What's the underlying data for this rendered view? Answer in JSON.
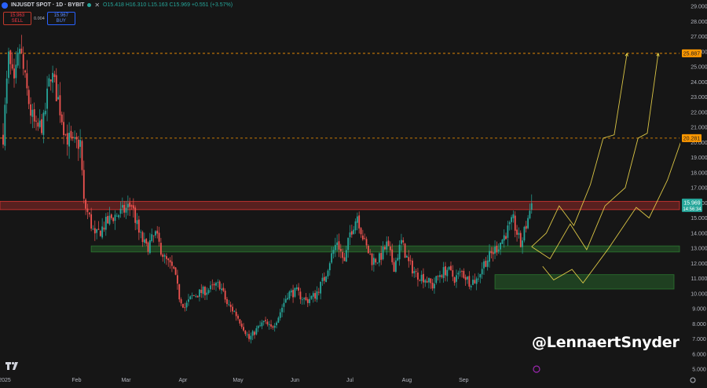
{
  "header": {
    "symbol_title": "INJUSDT SPOT · 1D · BYBIT",
    "close_label": "✕",
    "ohlc": "O15.418 H16.310 L15.163 C15.969 +0.551 (+3.57%)"
  },
  "trade": {
    "sell_price": "15.963",
    "sell_label": "SELL",
    "spread": "0.004",
    "buy_price": "15.967",
    "buy_label": "BUY"
  },
  "watermark": "@LennaertSnyder",
  "colors": {
    "background": "#161616",
    "up": "#26a69a",
    "down": "#ef5350",
    "resistance_zone": "#e53935",
    "support_zone": "#2e7d32",
    "target_line": "#ff9800",
    "projection": "#f0d84a",
    "price_tag": "#26a69a"
  },
  "chart_data": {
    "type": "candlestick",
    "symbol": "INJUSDT",
    "timeframe": "1D",
    "y_axis": {
      "ticks": [
        "29.000",
        "28.000",
        "27.000",
        "26.000",
        "25.000",
        "24.000",
        "23.000",
        "22.000",
        "21.000",
        "20.000",
        "19.000",
        "18.000",
        "17.000",
        "16.000",
        "15.000",
        "14.000",
        "13.000",
        "12.000",
        "11.000",
        "10.000",
        "9.000",
        "8.000",
        "7.000",
        "6.000",
        "5.000"
      ],
      "range": [
        4.6,
        29.3
      ],
      "position": "right"
    },
    "x_axis": {
      "ticks": [
        "2025",
        "Feb",
        "Mar",
        "Apr",
        "May",
        "Jun",
        "Jul",
        "Aug",
        "Sep"
      ]
    },
    "last_price": {
      "value": 15.969,
      "label": "15.969",
      "countdown": "14:56:34"
    },
    "target_levels": [
      {
        "value": 25.887,
        "label": "25.887"
      },
      {
        "value": 20.281,
        "label": "20.281"
      }
    ],
    "zones": [
      {
        "kind": "resistance",
        "from": 15.55,
        "to": 16.1
      },
      {
        "kind": "support",
        "from": 12.75,
        "to": 13.15
      },
      {
        "kind": "support",
        "from": 10.3,
        "to": 11.25
      }
    ],
    "price_path": [
      {
        "day": 0,
        "price": 20.5
      },
      {
        "day": 3,
        "price": 25.5
      },
      {
        "day": 6,
        "price": 23.6
      },
      {
        "day": 9,
        "price": 26.3
      },
      {
        "day": 12,
        "price": 24.0
      },
      {
        "day": 15,
        "price": 22.0
      },
      {
        "day": 18,
        "price": 20.8
      },
      {
        "day": 22,
        "price": 21.3
      },
      {
        "day": 26,
        "price": 24.7
      },
      {
        "day": 30,
        "price": 22.8
      },
      {
        "day": 34,
        "price": 20.5
      },
      {
        "day": 38,
        "price": 19.8
      },
      {
        "day": 42,
        "price": 20.0
      },
      {
        "day": 44,
        "price": 16.0
      },
      {
        "day": 47,
        "price": 15.0
      },
      {
        "day": 50,
        "price": 13.7
      },
      {
        "day": 55,
        "price": 14.5
      },
      {
        "day": 60,
        "price": 15.1
      },
      {
        "day": 65,
        "price": 15.4
      },
      {
        "day": 70,
        "price": 15.9
      },
      {
        "day": 74,
        "price": 14.0
      },
      {
        "day": 78,
        "price": 13.0
      },
      {
        "day": 83,
        "price": 13.9
      },
      {
        "day": 88,
        "price": 12.3
      },
      {
        "day": 93,
        "price": 11.5
      },
      {
        "day": 96,
        "price": 9.8
      },
      {
        "day": 99,
        "price": 9.1
      },
      {
        "day": 103,
        "price": 9.8
      },
      {
        "day": 108,
        "price": 10.1
      },
      {
        "day": 113,
        "price": 10.3
      },
      {
        "day": 118,
        "price": 10.6
      },
      {
        "day": 122,
        "price": 9.3
      },
      {
        "day": 126,
        "price": 8.8
      },
      {
        "day": 130,
        "price": 8.0
      },
      {
        "day": 134,
        "price": 7.0
      },
      {
        "day": 138,
        "price": 7.6
      },
      {
        "day": 142,
        "price": 8.1
      },
      {
        "day": 146,
        "price": 7.7
      },
      {
        "day": 150,
        "price": 8.5
      },
      {
        "day": 155,
        "price": 10.0
      },
      {
        "day": 160,
        "price": 10.1
      },
      {
        "day": 165,
        "price": 9.5
      },
      {
        "day": 170,
        "price": 9.9
      },
      {
        "day": 175,
        "price": 11.0
      },
      {
        "day": 178,
        "price": 12.2
      },
      {
        "day": 182,
        "price": 13.5
      },
      {
        "day": 186,
        "price": 12.0
      },
      {
        "day": 189,
        "price": 14.0
      },
      {
        "day": 193,
        "price": 15.2
      },
      {
        "day": 197,
        "price": 13.3
      },
      {
        "day": 201,
        "price": 12.2
      },
      {
        "day": 205,
        "price": 12.3
      },
      {
        "day": 209,
        "price": 13.2
      },
      {
        "day": 213,
        "price": 11.8
      },
      {
        "day": 217,
        "price": 13.4
      },
      {
        "day": 221,
        "price": 12.0
      },
      {
        "day": 225,
        "price": 11.3
      },
      {
        "day": 230,
        "price": 11.0
      },
      {
        "day": 234,
        "price": 10.5
      },
      {
        "day": 238,
        "price": 11.3
      },
      {
        "day": 242,
        "price": 11.6
      },
      {
        "day": 246,
        "price": 11.0
      },
      {
        "day": 250,
        "price": 11.4
      },
      {
        "day": 254,
        "price": 10.8
      },
      {
        "day": 258,
        "price": 10.9
      },
      {
        "day": 262,
        "price": 12.0
      },
      {
        "day": 266,
        "price": 12.6
      },
      {
        "day": 270,
        "price": 13.2
      },
      {
        "day": 274,
        "price": 14.0
      },
      {
        "day": 278,
        "price": 14.8
      },
      {
        "day": 282,
        "price": 13.2
      },
      {
        "day": 285,
        "price": 14.5
      },
      {
        "day": 288,
        "price": 15.969
      }
    ],
    "projections": [
      [
        {
          "day": 288,
          "price": 13.1
        },
        {
          "day": 296,
          "price": 14.0
        },
        {
          "day": 303,
          "price": 15.8
        },
        {
          "day": 311,
          "price": 14.5
        },
        {
          "day": 320,
          "price": 17.2
        },
        {
          "day": 327,
          "price": 20.281
        },
        {
          "day": 333,
          "price": 20.5
        },
        {
          "day": 340,
          "price": 25.887
        }
      ],
      [
        {
          "day": 288,
          "price": 13.1
        },
        {
          "day": 298,
          "price": 12.3
        },
        {
          "day": 309,
          "price": 14.6
        },
        {
          "day": 318,
          "price": 12.9
        },
        {
          "day": 328,
          "price": 15.8
        },
        {
          "day": 339,
          "price": 17.0
        },
        {
          "day": 346,
          "price": 20.281
        },
        {
          "day": 351,
          "price": 20.6
        },
        {
          "day": 357,
          "price": 25.887
        }
      ],
      [
        {
          "day": 294,
          "price": 11.8
        },
        {
          "day": 300,
          "price": 10.9
        },
        {
          "day": 310,
          "price": 11.6
        },
        {
          "day": 316,
          "price": 10.7
        },
        {
          "day": 330,
          "price": 13.0
        },
        {
          "day": 345,
          "price": 15.7
        },
        {
          "day": 352,
          "price": 15.0
        },
        {
          "day": 362,
          "price": 17.5
        },
        {
          "day": 370,
          "price": 20.281
        },
        {
          "day": 375,
          "price": 20.6
        },
        {
          "day": 381,
          "price": 25.887
        }
      ]
    ]
  }
}
